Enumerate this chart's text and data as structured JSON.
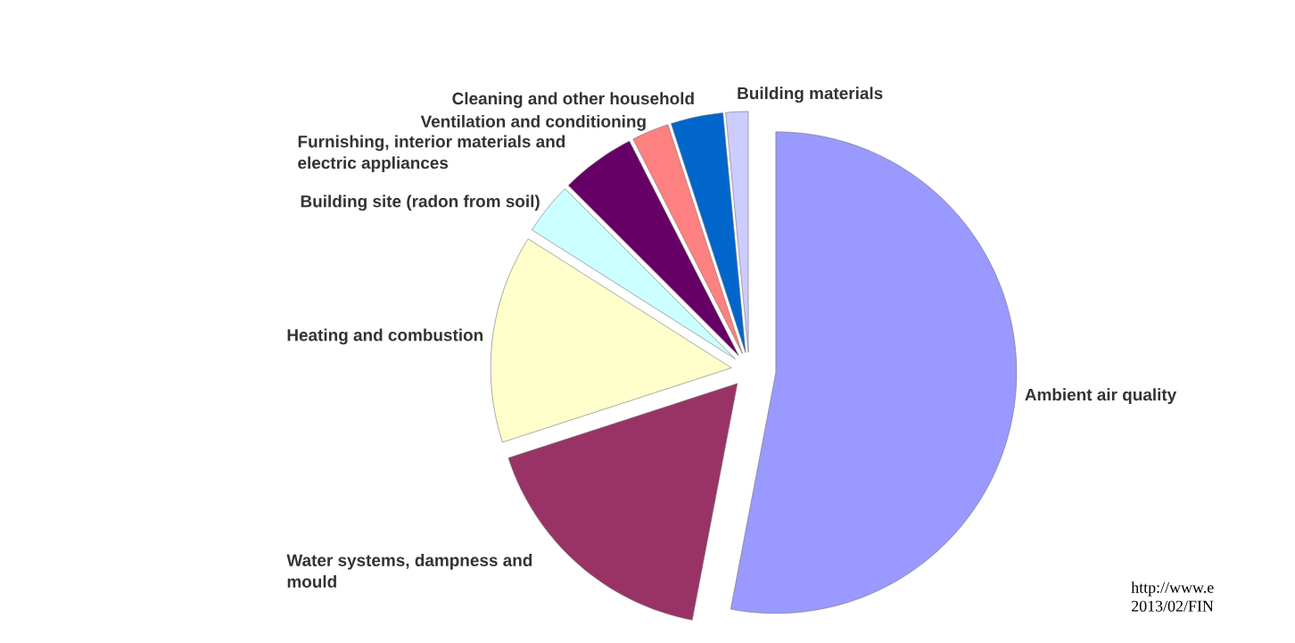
{
  "chart_data": {
    "type": "pie",
    "categories": [
      "Ambient air quality",
      "Water systems, dampness and mould",
      "Heating and combustion",
      "Building site (radon from soil)",
      "Furnishing, interior materials and electric appliances",
      "Ventilation and conditioning",
      "Cleaning and other household",
      "Building materials"
    ],
    "values": [
      53,
      17,
      14,
      3.5,
      5,
      2.5,
      3.5,
      1.5
    ],
    "colors": [
      "#9999ff",
      "#993366",
      "#ffffcc",
      "#ccffff",
      "#660066",
      "#ff8080",
      "#0066cc",
      "#ccccff"
    ],
    "annotations": [
      "http://www.e 2013/02/FIN"
    ]
  }
}
